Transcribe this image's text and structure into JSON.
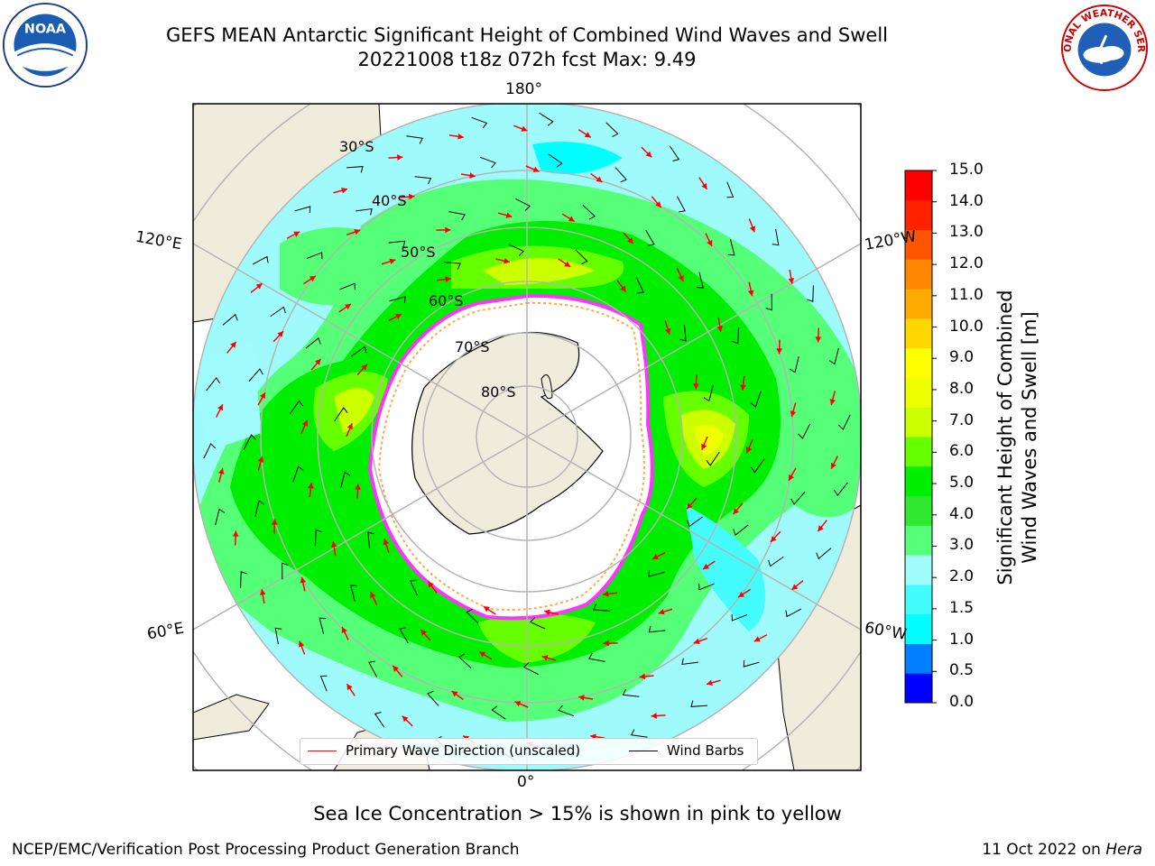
{
  "header": {
    "title_line1": "GEFS MEAN Antarctic Significant Height of Combined Wind Waves and Swell",
    "title_line2": "20221008 t18z 072h fcst   Max: 9.49",
    "left_logo_text": "NOAA",
    "right_logo_text": "NATIONAL WEATHER SERVICE"
  },
  "map": {
    "longitude_labels": {
      "top": "180°",
      "bottom": "0°",
      "upper_left": "120°E",
      "upper_right": "120°W",
      "lower_left": "60°E",
      "lower_right": "60°W"
    },
    "latitude_labels": [
      "30°S",
      "40°S",
      "50°S",
      "60°S",
      "70°S",
      "80°S"
    ],
    "colors": {
      "land": "#efecdc",
      "ocean_base": "#9ffbfb",
      "ice_edge": "#ff33ff",
      "ice_inner": "#ffaa44",
      "wave_arrow": "#ff0000",
      "wind_barb": "#000000"
    }
  },
  "legend": {
    "wave_direction": "Primary Wave Direction (unscaled)",
    "wind_barbs": "Wind Barbs"
  },
  "colorbar": {
    "label_line1": "Significant Height of Combined",
    "label_line2": "Wind Waves and Swell [m]",
    "ticks": [
      "15.0",
      "14.0",
      "13.0",
      "12.0",
      "11.0",
      "10.0",
      "9.0",
      "8.0",
      "7.0",
      "6.0",
      "5.0",
      "4.0",
      "3.0",
      "2.0",
      "1.5",
      "1.0",
      "0.5",
      "0.0"
    ],
    "colors_bottom_to_top": [
      "#0000ff",
      "#0080ff",
      "#00ffff",
      "#44fcfc",
      "#a0fcfc",
      "#55ff77",
      "#2fe82f",
      "#00ee00",
      "#66ff00",
      "#ccff00",
      "#eeff00",
      "#ffff00",
      "#ffd700",
      "#ffaa00",
      "#ff8800",
      "#ff5500",
      "#ff2200",
      "#ff0000"
    ]
  },
  "note": "Sea Ice Concentration > 15% is shown in pink to yellow",
  "footer": {
    "left": "NCEP/EMC/Verification Post Processing Product Generation Branch",
    "right_date": "11 Oct 2022 on ",
    "right_host": "Hera"
  }
}
